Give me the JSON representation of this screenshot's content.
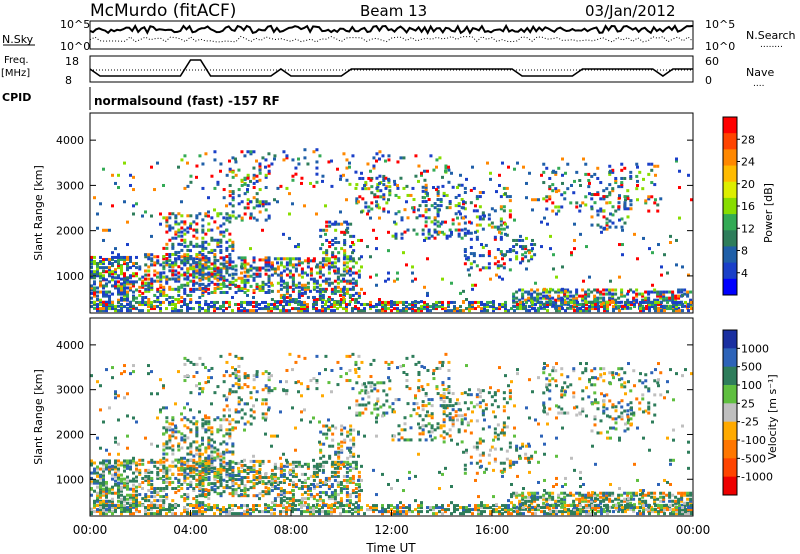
{
  "header": {
    "station": "McMurdo (fitACF)",
    "beam": "Beam 13",
    "date": "03/Jan/2012"
  },
  "top_panels": {
    "nsky_label": "N.Sky",
    "nsearch_label": "N.Search",
    "nsearch_dots": "........",
    "left_ticks": [
      "10^5",
      "10^0"
    ],
    "right_ticks": [
      "10^5",
      "10^0"
    ],
    "freq_label_line1": "Freq.",
    "freq_label_line2": "[MHz]",
    "freq_ticks": [
      "18",
      "8"
    ],
    "nave_label": "Nave",
    "nave_dots": "....",
    "nave_ticks": [
      "60",
      "0"
    ],
    "cpid_label": "CPID",
    "cpid_value": "normalsound (fast) -157 RF"
  },
  "chart_data": [
    {
      "type": "heatmap",
      "title": "",
      "xlabel": "",
      "ylabel": "Slant Range [km]",
      "y_ticks": [
        "1000",
        "2000",
        "3000",
        "4000"
      ],
      "ylim": [
        180,
        4600
      ],
      "colorbar_label": "Power [dB]",
      "colorbar_ticks": [
        "28",
        "24",
        "20",
        "16",
        "12",
        "8",
        "4"
      ],
      "colorbar_colors": [
        "#ff0000",
        "#ff4400",
        "#ff8800",
        "#ffbb00",
        "#ddee00",
        "#88dd00",
        "#33aa55",
        "#2e7d5b",
        "#1f5fa8",
        "#1a3fc8",
        "#0000ff"
      ],
      "grid": false
    },
    {
      "type": "heatmap",
      "title": "",
      "xlabel": "Time UT",
      "ylabel": "Slant Range [km]",
      "y_ticks": [
        "1000",
        "2000",
        "3000",
        "4000"
      ],
      "x_ticks": [
        "00:00",
        "04:00",
        "08:00",
        "12:00",
        "16:00",
        "20:00",
        "00:00"
      ],
      "ylim": [
        180,
        4600
      ],
      "colorbar_label": "Velocity [m s⁻¹]",
      "colorbar_ticks": [
        "1000",
        "500",
        "100",
        "25",
        "-25",
        "-100",
        "-500",
        "-1000"
      ],
      "colorbar_colors": [
        "#1a2fa0",
        "#2d63b8",
        "#2e7d5b",
        "#5fbf3f",
        "#bfbfbf",
        "#ffaa00",
        "#ff7700",
        "#ff4400",
        "#ee0000"
      ],
      "grid": false
    }
  ],
  "axis": {
    "xlabel": "Time UT",
    "power_label": "Power [dB]",
    "velocity_label": "Velocity [m s⁻¹]"
  }
}
